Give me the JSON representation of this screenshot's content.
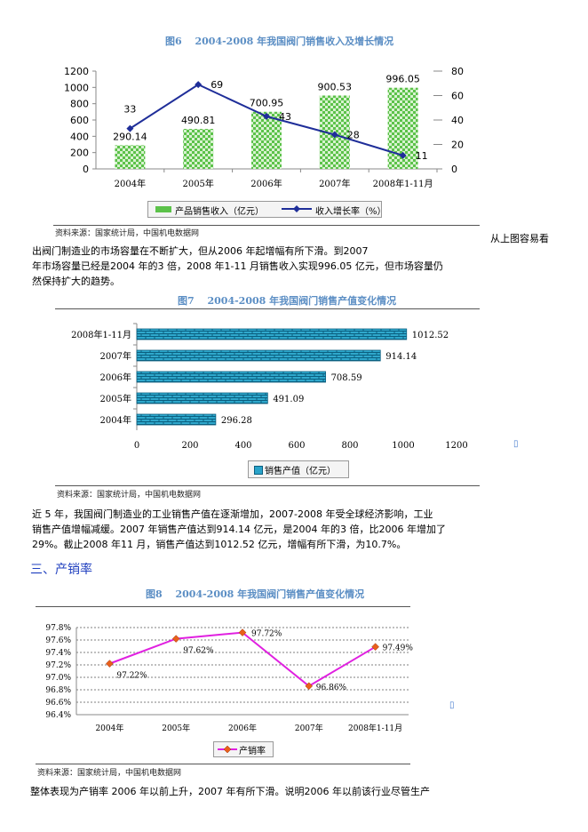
{
  "fig6": {
    "title": "图6　 2004-2008 年我国阀门销售收入及增长情况",
    "source": "资料来源：国家统计局，中国机电数据网",
    "legend_bar": "产品销售收入（亿元）",
    "legend_line": "收入增长率（%）"
  },
  "fig7": {
    "title": "图7　 2004-2008 年我国阀门销售产值变化情况",
    "source": "资料来源：国家统计局，中国机电数据网",
    "legend": "销售产值（亿元）"
  },
  "fig8": {
    "title": "图8　 2004-2008 年我国阀门销售产值变化情况",
    "source": "资料来源：国家统计局，中国机电数据网",
    "legend": "产销率"
  },
  "text": {
    "side_note": "从上图容易看",
    "p1_line1": "出阀门制造业的市场容量在不断扩大，但从2006  年起增幅有所下滑。到2007",
    "p1_line2": "年市场容量已经是2004  年的3 倍，2008  年1-11  月销售收入实现996.05  亿元，但市场容量仍",
    "p1_line3": "然保持扩大的趋势。",
    "p2_line1": "近  5  年，我国阀门制造业的工业销售产值在逐渐增加，2007-2008   年受全球经济影响，工业",
    "p2_line2": "销售产值增幅减缓。2007  年销售产值达到914.14  亿元，是2004  年的3  倍，比2006  年增加了",
    "p2_line3": "29%。截止2008  年11  月，销售产值达到1012.52  亿元，增幅有所下滑，为10.7%。",
    "section_heading": "三、产销率",
    "p3_line1": "整体表现为产销率  2006  年以前上升，2007  年有所下滑。说明2006  年以前该行业尽管生产",
    "marker_glyph": "▯"
  },
  "chart_data": [
    {
      "type": "bar+line",
      "title": "2004-2008 年我国阀门销售收入及增长情况",
      "categories": [
        "2004年",
        "2005年",
        "2006年",
        "2007年",
        "2008年1-11月"
      ],
      "series": [
        {
          "name": "产品销售收入（亿元）",
          "type": "bar",
          "axis": "left",
          "values": [
            290.14,
            490.81,
            700.95,
            900.53,
            996.05
          ],
          "labels": [
            "290.14",
            "490.81",
            "700.95",
            "900.53",
            "996.05"
          ]
        },
        {
          "name": "收入增长率（%）",
          "type": "line",
          "axis": "right",
          "values": [
            33,
            69,
            43,
            28,
            11
          ],
          "labels": [
            "33",
            "69",
            "43",
            "28",
            "11"
          ]
        }
      ],
      "left_axis": {
        "ylim": [
          0,
          1200
        ],
        "ticks": [
          0,
          200,
          400,
          600,
          800,
          1000,
          1200
        ]
      },
      "right_axis": {
        "ylim": [
          0,
          80
        ],
        "ticks": [
          0,
          20,
          40,
          60,
          80
        ]
      },
      "legend": "bottom",
      "colors": {
        "bar": "#5cc24a",
        "line": "#1f2e99"
      }
    },
    {
      "type": "bar",
      "orientation": "horizontal",
      "title": "2004-2008 年我国阀门销售产值变化情况",
      "categories": [
        "2008年1-11月",
        "2007年",
        "2006年",
        "2005年",
        "2004年"
      ],
      "category_labels": [
        "2008年1-11月",
        "2007年",
        "2006年",
        "2005年",
        "2004年"
      ],
      "series": [
        {
          "name": "销售产值（亿元）",
          "values": [
            1012.52,
            914.14,
            708.59,
            491.09,
            296.28
          ],
          "labels": [
            "1012.52",
            "914.14",
            "708.59",
            "491.09",
            "296.28"
          ]
        }
      ],
      "xlim": [
        0,
        1200
      ],
      "ticks": [
        0,
        200,
        400,
        600,
        800,
        1000,
        1200
      ],
      "legend": "bottom",
      "colors": {
        "bar": "#29a3c9"
      }
    },
    {
      "type": "line",
      "title": "2004-2008 年我国阀门销售产值变化情况",
      "categories": [
        "2004年",
        "2005年",
        "2006年",
        "2007年",
        "2008年1-11月"
      ],
      "series": [
        {
          "name": "产销率",
          "values": [
            97.22,
            97.62,
            97.72,
            96.86,
            97.49
          ],
          "labels": [
            "97.22%",
            "97.62%",
            "97.72%",
            "96.86%",
            "97.49%"
          ]
        }
      ],
      "ylim": [
        96.4,
        97.8
      ],
      "ticks": [
        "96.4%",
        "96.6%",
        "96.8%",
        "97.0%",
        "97.2%",
        "97.4%",
        "97.6%",
        "97.8%"
      ],
      "tick_values": [
        96.4,
        96.6,
        96.8,
        97.0,
        97.2,
        97.4,
        97.6,
        97.8
      ],
      "grid": "dashed",
      "legend": "bottom",
      "colors": {
        "line": "#e020e0",
        "marker": "#e8601c"
      }
    }
  ]
}
